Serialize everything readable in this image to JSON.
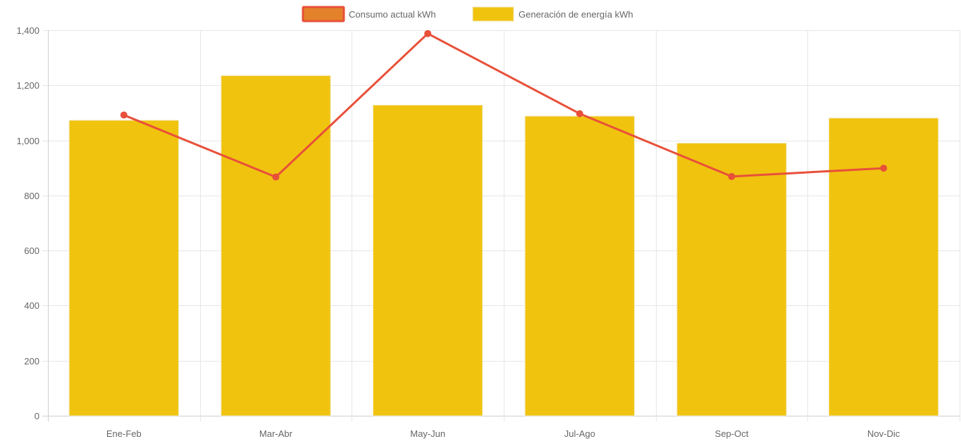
{
  "chart_data": {
    "type": "bar",
    "categories": [
      "Ene-Feb",
      "Mar-Abr",
      "May-Jun",
      "Jul-Ago",
      "Sep-Oct",
      "Nov-Dic"
    ],
    "series": [
      {
        "name": "Consumo actual kWh",
        "type": "line",
        "values": [
          1092,
          867,
          1388,
          1097,
          869,
          899
        ],
        "color": "#e8503a"
      },
      {
        "name": "Generación de energía kWh",
        "type": "bar",
        "values": [
          1073,
          1235,
          1128,
          1088,
          990,
          1081
        ],
        "color": "#f0c30f"
      }
    ],
    "ylim": [
      0,
      1400
    ],
    "yticks": [
      "0",
      "200",
      "400",
      "600",
      "800",
      "1,000",
      "1,200",
      "1,400"
    ],
    "ytick_values": [
      0,
      200,
      400,
      600,
      800,
      1000,
      1200,
      1400
    ],
    "grid": true,
    "legend_position": "top-center",
    "colors": {
      "line": "#e8503a",
      "line_legend_fill": "#e3822a",
      "bar": "#f0c30f",
      "grid": "#e6e6e6",
      "text": "#666666"
    }
  }
}
